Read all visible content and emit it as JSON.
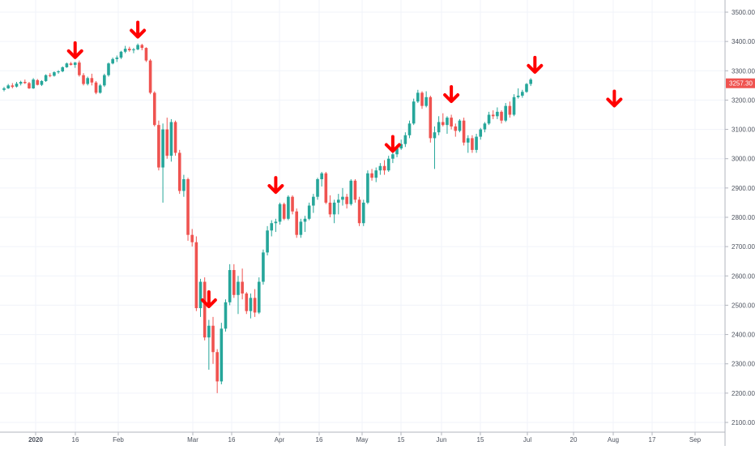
{
  "chart_data": {
    "type": "candlestick",
    "title": "",
    "xlabel": "",
    "ylabel": "",
    "ylim": [
      2080,
      3540
    ],
    "y_ticks": [
      "3500.00",
      "3400.00",
      "3300.00",
      "3200.00",
      "3100.00",
      "3000.00",
      "2900.00",
      "2800.00",
      "2700.00",
      "2600.00",
      "2500.00",
      "2400.00",
      "2300.00",
      "2200.00",
      "2100.00"
    ],
    "x_ticks": [
      "2020",
      "16",
      "Feb",
      "Mar",
      "16",
      "Apr",
      "16",
      "May",
      "15",
      "Jun",
      "15",
      "Jul",
      "20",
      "Aug",
      "17",
      "Sep"
    ],
    "last_price": "3257.30",
    "colors": {
      "up": "#26a69a",
      "down": "#ef5350",
      "arrow": "#ff0000",
      "price_tag": "#ef5350",
      "grid": "#f0f3fa",
      "axis_text": "#4c525e"
    },
    "candles": [
      [
        3235,
        3245,
        3230,
        3240
      ],
      [
        3240,
        3255,
        3238,
        3250
      ],
      [
        3250,
        3258,
        3240,
        3245
      ],
      [
        3246,
        3262,
        3243,
        3256
      ],
      [
        3256,
        3266,
        3250,
        3262
      ],
      [
        3262,
        3270,
        3255,
        3258
      ],
      [
        3258,
        3262,
        3238,
        3240
      ],
      [
        3240,
        3275,
        3238,
        3270
      ],
      [
        3268,
        3272,
        3250,
        3252
      ],
      [
        3252,
        3268,
        3248,
        3265
      ],
      [
        3265,
        3288,
        3262,
        3285
      ],
      [
        3285,
        3292,
        3278,
        3283
      ],
      [
        3283,
        3298,
        3280,
        3295
      ],
      [
        3295,
        3302,
        3290,
        3298
      ],
      [
        3298,
        3315,
        3295,
        3312
      ],
      [
        3312,
        3328,
        3310,
        3325
      ],
      [
        3325,
        3330,
        3318,
        3320
      ],
      [
        3320,
        3330,
        3310,
        3328
      ],
      [
        3328,
        3335,
        3280,
        3285
      ],
      [
        3285,
        3292,
        3250,
        3255
      ],
      [
        3255,
        3280,
        3250,
        3275
      ],
      [
        3275,
        3290,
        3250,
        3260
      ],
      [
        3260,
        3265,
        3220,
        3225
      ],
      [
        3225,
        3255,
        3222,
        3250
      ],
      [
        3250,
        3290,
        3245,
        3285
      ],
      [
        3285,
        3328,
        3280,
        3325
      ],
      [
        3325,
        3345,
        3322,
        3340
      ],
      [
        3340,
        3352,
        3330,
        3345
      ],
      [
        3345,
        3368,
        3340,
        3365
      ],
      [
        3365,
        3385,
        3360,
        3375
      ],
      [
        3375,
        3382,
        3365,
        3370
      ],
      [
        3370,
        3378,
        3360,
        3373
      ],
      [
        3373,
        3393,
        3370,
        3388
      ],
      [
        3388,
        3392,
        3370,
        3378
      ],
      [
        3378,
        3380,
        3330,
        3335
      ],
      [
        3335,
        3340,
        3220,
        3225
      ],
      [
        3225,
        3230,
        3110,
        3115
      ],
      [
        3115,
        3130,
        2960,
        2970
      ],
      [
        2970,
        3120,
        2850,
        3100
      ],
      [
        3100,
        3140,
        3000,
        3010
      ],
      [
        3010,
        3135,
        2990,
        3125
      ],
      [
        3125,
        3130,
        3010,
        3020
      ],
      [
        3020,
        3030,
        2880,
        2890
      ],
      [
        2890,
        2945,
        2870,
        2930
      ],
      [
        2930,
        2935,
        2720,
        2740
      ],
      [
        2740,
        2760,
        2700,
        2715
      ],
      [
        2715,
        2735,
        2480,
        2490
      ],
      [
        2490,
        2590,
        2460,
        2580
      ],
      [
        2580,
        2595,
        2380,
        2390
      ],
      [
        2390,
        2450,
        2280,
        2430
      ],
      [
        2430,
        2460,
        2300,
        2340
      ],
      [
        2340,
        2350,
        2200,
        2240
      ],
      [
        2240,
        2440,
        2230,
        2420
      ],
      [
        2420,
        2520,
        2410,
        2510
      ],
      [
        2510,
        2640,
        2500,
        2620
      ],
      [
        2620,
        2640,
        2525,
        2535
      ],
      [
        2535,
        2600,
        2470,
        2580
      ],
      [
        2580,
        2625,
        2520,
        2540
      ],
      [
        2540,
        2545,
        2470,
        2480
      ],
      [
        2480,
        2540,
        2455,
        2525
      ],
      [
        2525,
        2555,
        2460,
        2475
      ],
      [
        2475,
        2595,
        2470,
        2580
      ],
      [
        2580,
        2690,
        2570,
        2680
      ],
      [
        2680,
        2770,
        2670,
        2755
      ],
      [
        2755,
        2790,
        2735,
        2780
      ],
      [
        2780,
        2795,
        2750,
        2785
      ],
      [
        2785,
        2850,
        2775,
        2845
      ],
      [
        2845,
        2850,
        2790,
        2795
      ],
      [
        2795,
        2875,
        2790,
        2870
      ],
      [
        2870,
        2875,
        2810,
        2820
      ],
      [
        2820,
        2830,
        2730,
        2740
      ],
      [
        2740,
        2795,
        2730,
        2785
      ],
      [
        2785,
        2805,
        2750,
        2795
      ],
      [
        2795,
        2850,
        2790,
        2840
      ],
      [
        2840,
        2880,
        2815,
        2870
      ],
      [
        2870,
        2935,
        2860,
        2930
      ],
      [
        2930,
        2955,
        2905,
        2950
      ],
      [
        2950,
        2955,
        2845,
        2850
      ],
      [
        2850,
        2875,
        2800,
        2810
      ],
      [
        2810,
        2860,
        2780,
        2850
      ],
      [
        2850,
        2880,
        2810,
        2860
      ],
      [
        2860,
        2900,
        2840,
        2870
      ],
      [
        2870,
        2880,
        2830,
        2845
      ],
      [
        2845,
        2930,
        2840,
        2925
      ],
      [
        2925,
        2930,
        2850,
        2860
      ],
      [
        2860,
        2870,
        2770,
        2780
      ],
      [
        2780,
        2860,
        2770,
        2850
      ],
      [
        2850,
        2960,
        2845,
        2950
      ],
      [
        2950,
        2965,
        2925,
        2935
      ],
      [
        2935,
        2970,
        2920,
        2960
      ],
      [
        2960,
        2985,
        2945,
        2975
      ],
      [
        2975,
        2995,
        2945,
        2960
      ],
      [
        2960,
        3010,
        2955,
        3000
      ],
      [
        3000,
        3025,
        2985,
        3015
      ],
      [
        3015,
        3040,
        3005,
        3035
      ],
      [
        3035,
        3065,
        3030,
        3050
      ],
      [
        3050,
        3090,
        3040,
        3080
      ],
      [
        3080,
        3130,
        3070,
        3120
      ],
      [
        3120,
        3205,
        3115,
        3195
      ],
      [
        3195,
        3235,
        3190,
        3225
      ],
      [
        3225,
        3230,
        3170,
        3180
      ],
      [
        3180,
        3230,
        3175,
        3210
      ],
      [
        3210,
        3215,
        3055,
        3070
      ],
      [
        3070,
        3110,
        2965,
        3090
      ],
      [
        3090,
        3145,
        3080,
        3125
      ],
      [
        3125,
        3155,
        3110,
        3115
      ],
      [
        3115,
        3145,
        3085,
        3140
      ],
      [
        3140,
        3150,
        3100,
        3110
      ],
      [
        3110,
        3120,
        3075,
        3095
      ],
      [
        3095,
        3135,
        3090,
        3130
      ],
      [
        3130,
        3140,
        3045,
        3055
      ],
      [
        3055,
        3080,
        3020,
        3070
      ],
      [
        3070,
        3080,
        3020,
        3030
      ],
      [
        3030,
        3085,
        3020,
        3075
      ],
      [
        3075,
        3105,
        3065,
        3100
      ],
      [
        3100,
        3125,
        3090,
        3120
      ],
      [
        3120,
        3160,
        3115,
        3150
      ],
      [
        3150,
        3165,
        3135,
        3145
      ],
      [
        3145,
        3175,
        3135,
        3160
      ],
      [
        3160,
        3165,
        3120,
        3130
      ],
      [
        3130,
        3190,
        3125,
        3180
      ],
      [
        3180,
        3195,
        3140,
        3150
      ],
      [
        3150,
        3220,
        3145,
        3210
      ],
      [
        3210,
        3240,
        3205,
        3215
      ],
      [
        3215,
        3235,
        3208,
        3228
      ],
      [
        3228,
        3258,
        3225,
        3255
      ],
      [
        3255,
        3275,
        3248,
        3270
      ]
    ],
    "arrows": [
      {
        "date_index": 17,
        "price": 3340
      },
      {
        "date_index": 32,
        "price": 3410
      },
      {
        "date_index": 49,
        "price": 2490
      },
      {
        "date_index": 65,
        "price": 2880
      },
      {
        "date_index": 93,
        "price": 3020
      },
      {
        "date_index": 107,
        "price": 3190
      },
      {
        "date_index": 127,
        "price": 3290
      },
      {
        "date_index": 146,
        "price": 3175
      }
    ]
  }
}
